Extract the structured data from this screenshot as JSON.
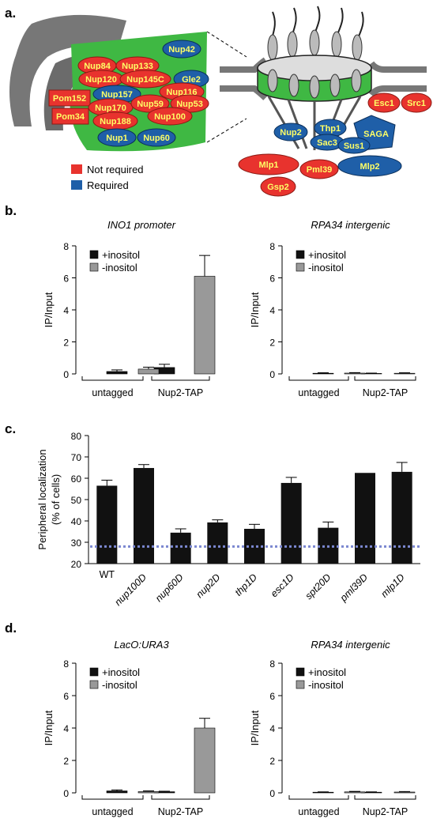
{
  "panels": [
    "a.",
    "b.",
    "c.",
    "d."
  ],
  "legend_a": {
    "not_required": "Not required",
    "required": "Required",
    "not_required_color": "#e8332e",
    "required_color": "#1f5fa8"
  },
  "diagram_a": {
    "left_labels": [
      "Nup42",
      "Nup84",
      "Nup133",
      "Nup120",
      "Nup145C",
      "Gle2",
      "Pom152",
      "Nup157",
      "Nup116",
      "Nup170",
      "Nup59",
      "Nup53",
      "Pom34",
      "Nup188",
      "Nup100",
      "Nup1",
      "Nup60"
    ],
    "right_labels": [
      "Esc1",
      "Src1",
      "Thp1",
      "Nup2",
      "SAGA",
      "Sac3",
      "Sus1",
      "Mlp1",
      "Pml39",
      "Mlp2",
      "Gsp2"
    ]
  },
  "colors": {
    "plus": "#111111",
    "minus": "#999999",
    "dotted": "#7b87d0",
    "membrane": "#57c24c"
  },
  "chart_data": [
    {
      "id": "b-left",
      "type": "bar",
      "title": "INO1 promoter",
      "ylabel": "IP/Input",
      "ylim": [
        0,
        8
      ],
      "yticks": [
        0,
        2,
        4,
        6,
        8
      ],
      "legend": [
        "+inositol",
        "-inositol"
      ],
      "legend_position": "top-left",
      "groups": [
        "untagged",
        "Nup2-TAP"
      ],
      "series": [
        {
          "name": "+inositol",
          "values": [
            0.15,
            0.4
          ],
          "errors": [
            0.1,
            0.2
          ]
        },
        {
          "name": "-inositol",
          "values": [
            0.3,
            6.1
          ],
          "errors": [
            0.12,
            1.3
          ]
        }
      ]
    },
    {
      "id": "b-right",
      "type": "bar",
      "title": "RPA34 intergenic",
      "ylabel": "IP/Input",
      "ylim": [
        0,
        8
      ],
      "yticks": [
        0,
        2,
        4,
        6,
        8
      ],
      "legend": [
        "+inositol",
        "-inositol"
      ],
      "legend_position": "top-left",
      "groups": [
        "untagged",
        "Nup2-TAP"
      ],
      "series": [
        {
          "name": "+inositol",
          "values": [
            0.04,
            0.03
          ],
          "errors": [
            0.03,
            0.02
          ]
        },
        {
          "name": "-inositol",
          "values": [
            0.05,
            0.04
          ],
          "errors": [
            0.03,
            0.03
          ]
        }
      ]
    },
    {
      "id": "c",
      "type": "bar",
      "ylabel": [
        "Peripheral localization",
        "(% of cells)"
      ],
      "ylim": [
        20,
        80
      ],
      "yticks": [
        20,
        30,
        40,
        50,
        60,
        70,
        80
      ],
      "categories": [
        "WT",
        "nup100D",
        "nup60D",
        "nup2D",
        "thp1D",
        "esc1D",
        "spt20D",
        "pml39D",
        "mlp1D"
      ],
      "values": [
        56.5,
        64.8,
        34.5,
        39.3,
        36.3,
        57.8,
        36.8,
        62.5,
        63
      ],
      "errors": [
        2.6,
        1.6,
        1.8,
        1.2,
        2.1,
        2.6,
        2.7,
        0,
        4.4
      ],
      "baseline": 28
    },
    {
      "id": "d-left",
      "type": "bar",
      "title": "LacO:URA3",
      "ylabel": "IP/Input",
      "ylim": [
        0,
        8
      ],
      "yticks": [
        0,
        2,
        4,
        6,
        8
      ],
      "legend": [
        "+inositol",
        "-inositol"
      ],
      "legend_position": "top-left",
      "groups": [
        "untagged",
        "Nup2-TAP"
      ],
      "series": [
        {
          "name": "+inositol",
          "values": [
            0.12,
            0.07
          ],
          "errors": [
            0.06,
            0.03
          ]
        },
        {
          "name": "-inositol",
          "values": [
            0.08,
            4.0
          ],
          "errors": [
            0.04,
            0.6
          ]
        }
      ]
    },
    {
      "id": "d-right",
      "type": "bar",
      "title": "RPA34 intergenic",
      "ylabel": "IP/Input",
      "ylim": [
        0,
        8
      ],
      "yticks": [
        0,
        2,
        4,
        6,
        8
      ],
      "legend": [
        "+inositol",
        "-inositol"
      ],
      "legend_position": "top-left",
      "groups": [
        "untagged",
        "Nup2-TAP"
      ],
      "series": [
        {
          "name": "+inositol",
          "values": [
            0.04,
            0.04
          ],
          "errors": [
            0.02,
            0.02
          ]
        },
        {
          "name": "-inositol",
          "values": [
            0.06,
            0.05
          ],
          "errors": [
            0.03,
            0.03
          ]
        }
      ]
    }
  ]
}
